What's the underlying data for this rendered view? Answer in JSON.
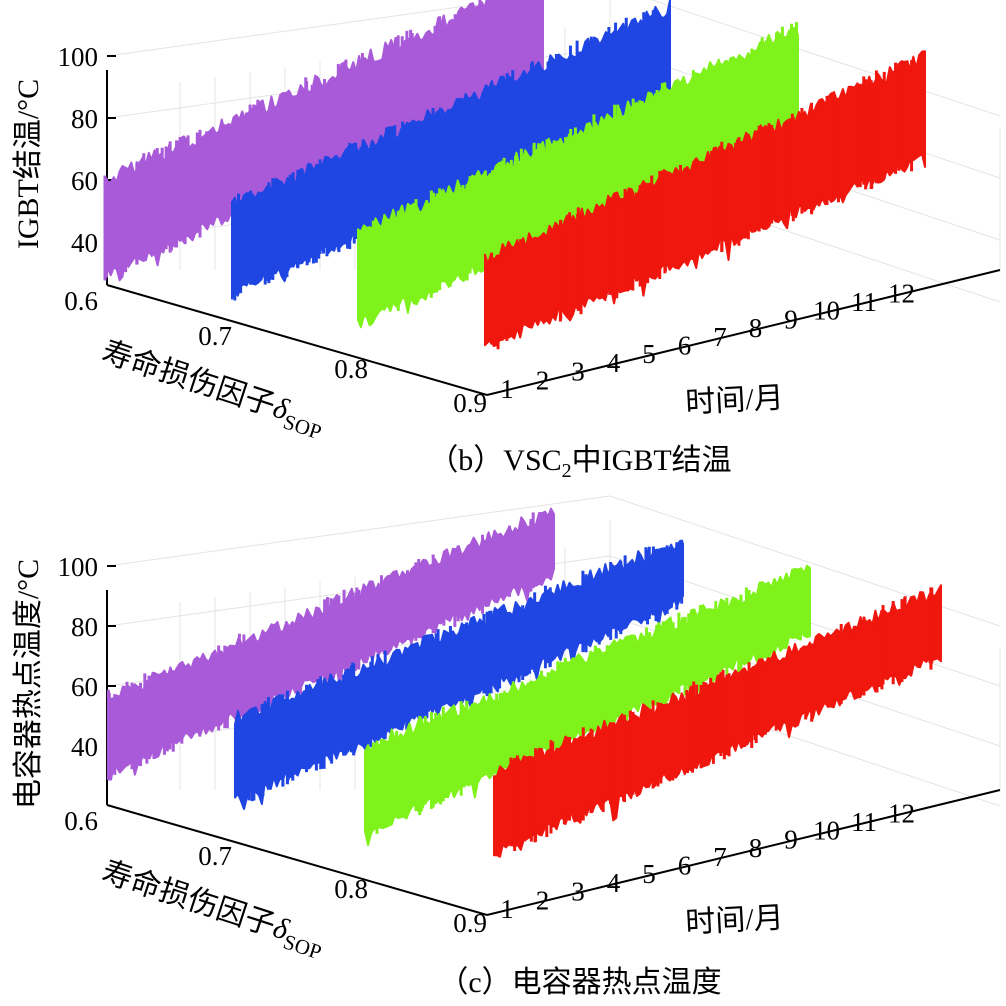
{
  "chart_data": [
    {
      "type": "line",
      "caption_prefix": "（b）VSC",
      "caption_sub": "2",
      "caption_suffix": "中IGBT结温",
      "zlabel": "IGBT结温/°C",
      "xlabel": "时间/月",
      "ylabel_text": "寿命损伤因子",
      "ylabel_symbol": "δ",
      "ylabel_sub": "SOP",
      "x_ticks": [
        "1",
        "2",
        "3",
        "4",
        "5",
        "6",
        "7",
        "8",
        "9",
        "10",
        "11",
        "12"
      ],
      "y_ticks": [
        "0.6",
        "0.7",
        "0.8",
        "0.9"
      ],
      "z_ticks": [
        "40",
        "60",
        "80",
        "100"
      ],
      "xlim": [
        1,
        12
      ],
      "zlim": [
        30,
        100
      ],
      "grid": true,
      "series": [
        {
          "delta": 0.6,
          "color": "#a95ad8",
          "min_start": 31,
          "min_end": 51,
          "max_start": 61,
          "max_end": 81
        },
        {
          "delta": 0.7,
          "color": "#1f46e3",
          "min_start": 34,
          "min_end": 51,
          "max_start": 62,
          "max_end": 80
        },
        {
          "delta": 0.8,
          "color": "#7ef21a",
          "min_start": 33,
          "min_end": 52,
          "max_start": 62,
          "max_end": 82
        },
        {
          "delta": 0.9,
          "color": "#f0170f",
          "min_start": 35,
          "min_end": 50,
          "max_start": 63,
          "max_end": 82
        }
      ]
    },
    {
      "type": "line",
      "caption_prefix": "（c）电容器热点温度",
      "caption_sub": "",
      "caption_suffix": "",
      "zlabel": "电容器热点温度/°C",
      "xlabel": "时间/月",
      "ylabel_text": "寿命损伤因子",
      "ylabel_symbol": "δ",
      "ylabel_sub": "SOP",
      "x_ticks": [
        "1",
        "2",
        "3",
        "4",
        "5",
        "6",
        "7",
        "8",
        "9",
        "10",
        "11",
        "12"
      ],
      "y_ticks": [
        "0.6",
        "0.7",
        "0.8",
        "0.9"
      ],
      "z_ticks": [
        "40",
        "60",
        "80",
        "100"
      ],
      "xlim": [
        1,
        12
      ],
      "zlim": [
        30,
        100
      ],
      "grid": true,
      "series": [
        {
          "delta": 0.6,
          "color": "#a95ad8",
          "min_start": 34,
          "min_end": 52,
          "max_start": 59,
          "max_end": 73
        },
        {
          "delta": 0.7,
          "color": "#1f46e3",
          "min_start": 34,
          "min_end": 52,
          "max_start": 61,
          "max_end": 72
        },
        {
          "delta": 0.8,
          "color": "#7ef21a",
          "min_start": 33,
          "min_end": 51,
          "max_start": 61,
          "max_end": 72
        },
        {
          "delta": 0.9,
          "color": "#f0170f",
          "min_start": 35,
          "min_end": 52,
          "max_start": 62,
          "max_end": 74
        }
      ]
    }
  ]
}
